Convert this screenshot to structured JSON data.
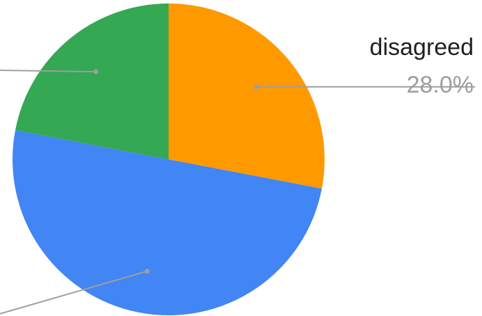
{
  "chart_data": {
    "type": "pie",
    "slices": [
      {
        "label": "disagreed",
        "value": 28.0,
        "percent_label": "28.0%",
        "color": "#FF9900",
        "show_label": true
      },
      {
        "label": "",
        "value": 50.0,
        "color": "#4285F4",
        "show_label": false
      },
      {
        "label": "",
        "value": 22.0,
        "color": "#34A853",
        "show_label": false
      }
    ],
    "start_angle_deg": 0,
    "direction": "clockwise",
    "leader_line_color": "#9e9e9e"
  }
}
